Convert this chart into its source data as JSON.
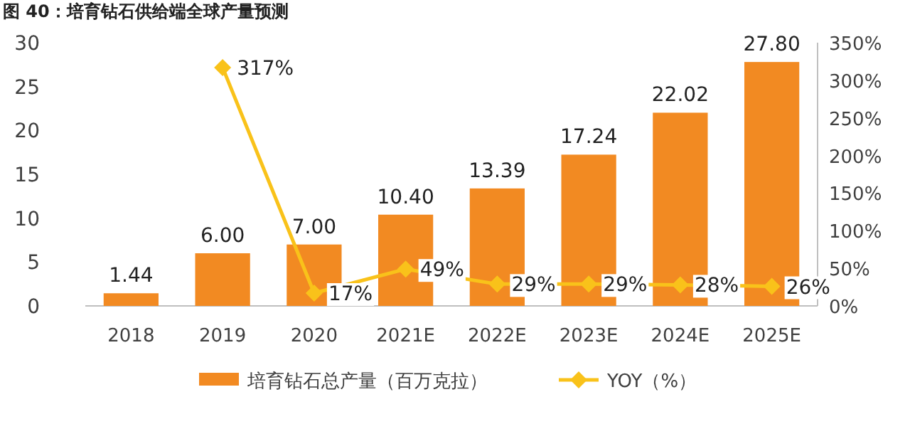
{
  "chart_data": {
    "type": "bar",
    "title": "图 40：培育钻石供给端全球产量预测",
    "categories": [
      "2018",
      "2019",
      "2020",
      "2021E",
      "2022E",
      "2023E",
      "2024E",
      "2025E"
    ],
    "series": [
      {
        "name": "培育钻石总产量（百万克拉）",
        "color": "#f28a22",
        "values": [
          1.44,
          6,
          7,
          10.4,
          13.39,
          17.24,
          22.02,
          27.8
        ],
        "value_labels": [
          "1.44",
          "6.00",
          "7.00",
          "10.40",
          "13.39",
          "17.24",
          "22.02",
          "27.80"
        ]
      },
      {
        "name": "YOY（%）",
        "type": "line",
        "axis": "y2",
        "color": "#f9c21a",
        "marker": "diamond",
        "values": [
          null,
          317,
          17,
          49,
          29,
          29,
          28,
          26
        ],
        "value_labels": [
          null,
          "317%",
          "17%",
          "49%",
          "29%",
          "29%",
          "28%",
          "26%"
        ]
      }
    ],
    "ylim": [
      0,
      30
    ],
    "yticks": [
      0,
      5,
      10,
      15,
      20,
      25,
      30
    ],
    "y2lim": [
      0,
      350
    ],
    "y2ticks": [
      {
        "value": 0,
        "label": "0%"
      },
      {
        "value": 50,
        "label": "50%"
      },
      {
        "value": 100,
        "label": "100%"
      },
      {
        "value": 150,
        "label": "150%"
      },
      {
        "value": 200,
        "label": "200%"
      },
      {
        "value": 250,
        "label": "250%"
      },
      {
        "value": 300,
        "label": "300%"
      },
      {
        "value": 350,
        "label": "350%"
      }
    ],
    "legend": "bottom"
  }
}
